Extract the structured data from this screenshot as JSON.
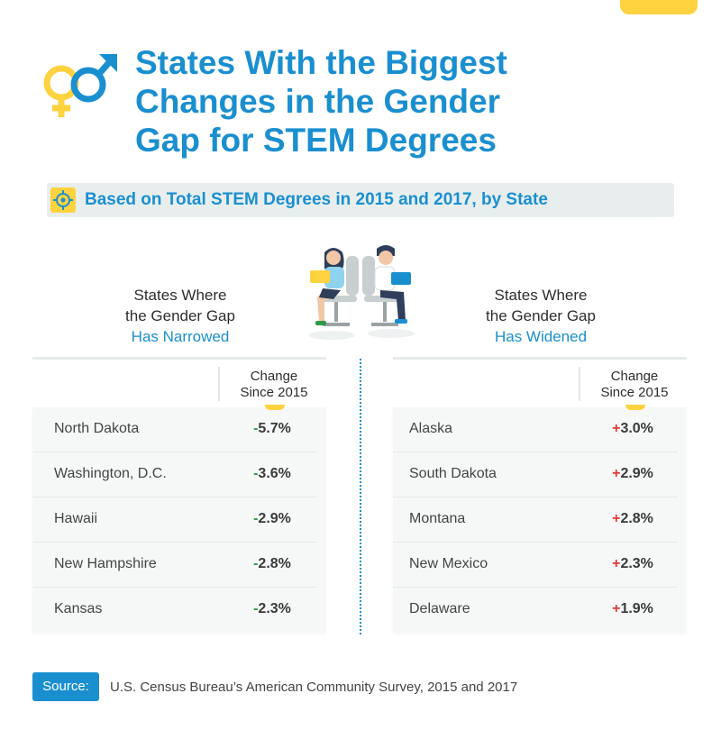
{
  "title": {
    "line1": "States With the Biggest",
    "line2": "Changes in the Gender",
    "line3": "Gap for STEM Degrees"
  },
  "subtitle": "Based on Total STEM Degrees in 2015 and 2017, by State",
  "left_panel": {
    "heading_line1": "States Where",
    "heading_line2": "the Gender Gap",
    "heading_line3": "Has Narrowed",
    "column_line1": "Change",
    "column_line2": "Since 2015",
    "rows": [
      {
        "state": "North Dakota",
        "sign": "-",
        "value": "5.7%"
      },
      {
        "state": "Washington, D.C.",
        "sign": "-",
        "value": "3.6%"
      },
      {
        "state": "Hawaii",
        "sign": "-",
        "value": "2.9%"
      },
      {
        "state": "New Hampshire",
        "sign": "-",
        "value": "2.8%"
      },
      {
        "state": "Kansas",
        "sign": "-",
        "value": "2.3%"
      }
    ]
  },
  "right_panel": {
    "heading_line1": "States Where",
    "heading_line2": "the Gender Gap",
    "heading_line3": "Has Widened",
    "column_line1": "Change",
    "column_line2": "Since 2015",
    "rows": [
      {
        "state": "Alaska",
        "sign": "+",
        "value": "3.0%"
      },
      {
        "state": "South Dakota",
        "sign": "+",
        "value": "2.9%"
      },
      {
        "state": "Montana",
        "sign": "+",
        "value": "2.8%"
      },
      {
        "state": "New Mexico",
        "sign": "+",
        "value": "2.3%"
      },
      {
        "state": "Delaware",
        "sign": "+",
        "value": "1.9%"
      }
    ]
  },
  "source": {
    "label": "Source:",
    "text": "U.S. Census Bureau’s American Community Survey, 2015 and 2017"
  },
  "colors": {
    "accent_blue": "#1a8fd0",
    "accent_yellow": "#ffd23f",
    "negative_green": "#2f9a4a",
    "positive_red": "#e03a3a"
  },
  "icons": [
    "gender-symbols-icon",
    "target-icon",
    "people-at-laptops-illustration"
  ]
}
